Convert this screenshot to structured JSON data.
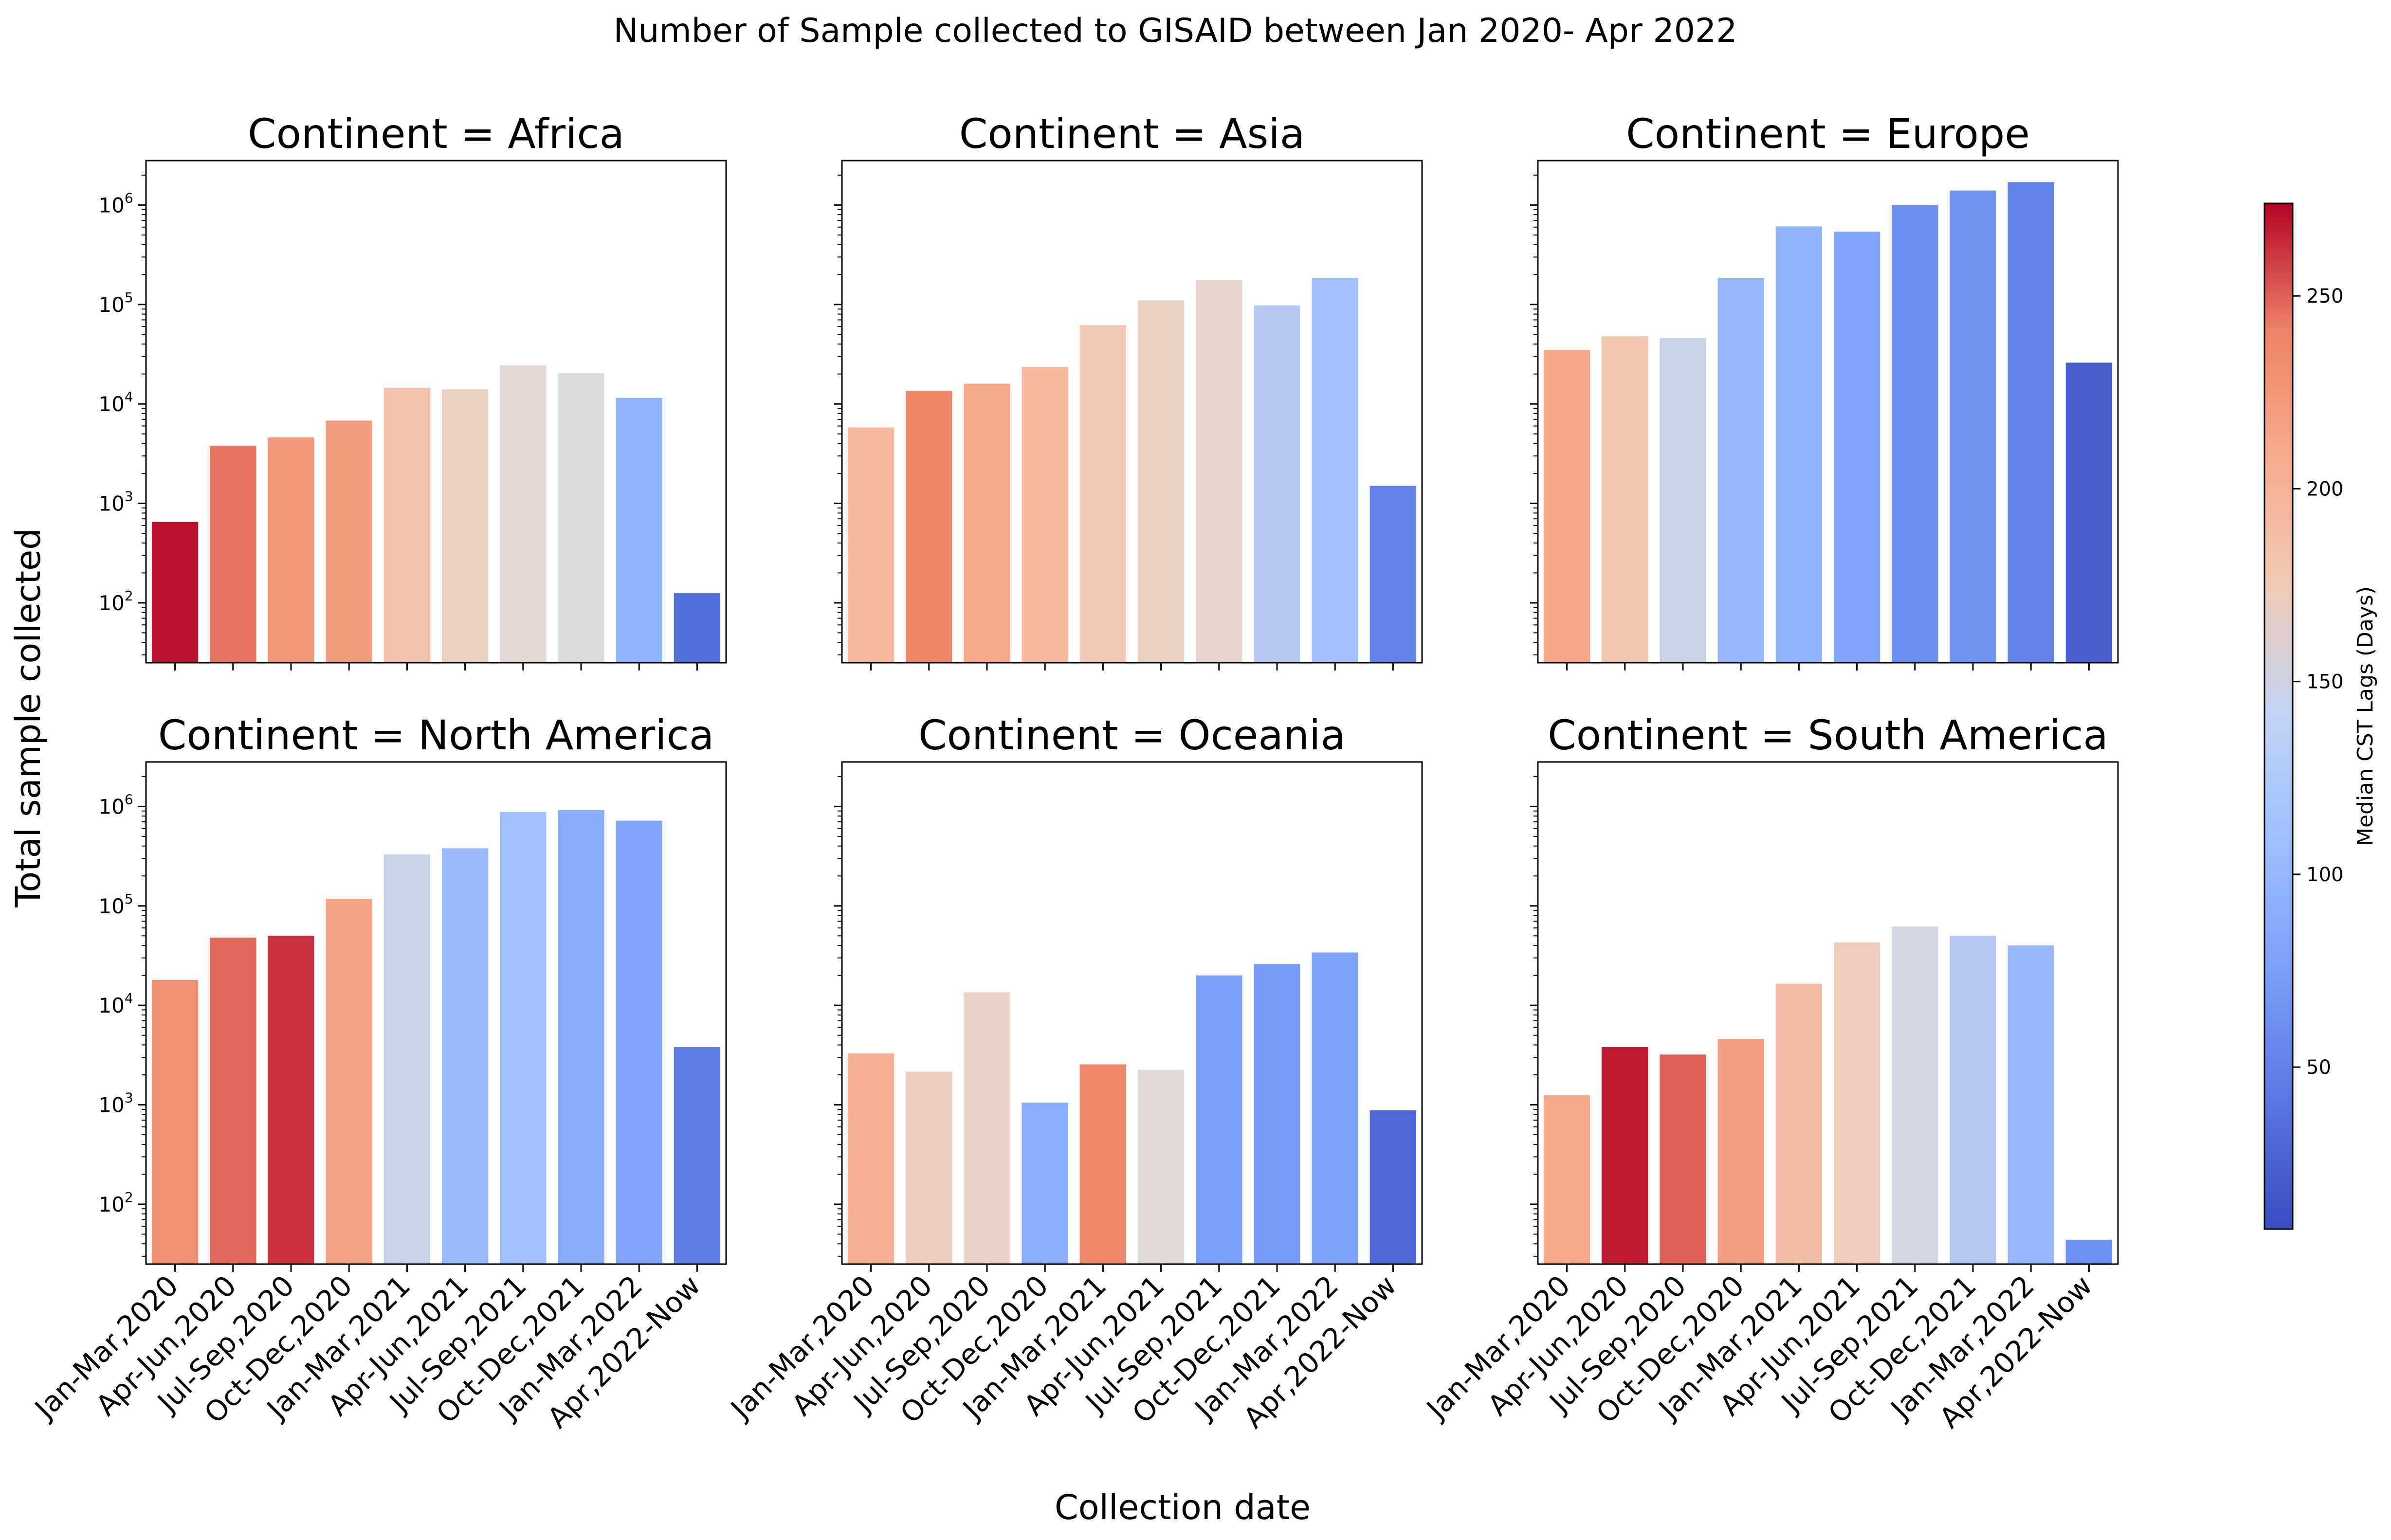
{
  "chart_data": {
    "type": "bar",
    "title": "Number of Sample collected to GISAID between Jan 2020- Apr 2022",
    "xlabel": "Collection date",
    "ylabel": "Total sample collected",
    "yscale": "log",
    "ylim": [
      25,
      2800000
    ],
    "ytick_labels": [
      {
        "base": "10",
        "exp": "2",
        "value": 100
      },
      {
        "base": "10",
        "exp": "3",
        "value": 1000
      },
      {
        "base": "10",
        "exp": "4",
        "value": 10000
      },
      {
        "base": "10",
        "exp": "5",
        "value": 100000
      },
      {
        "base": "10",
        "exp": "6",
        "value": 1000000
      }
    ],
    "categories": [
      "Jan-Mar,2020",
      "Apr-Jun,2020",
      "Jul-Sep,2020",
      "Oct-Dec,2020",
      "Jan-Mar,2021",
      "Apr-Jun,2021",
      "Jul-Sep,2021",
      "Oct-Dec,2021",
      "Jan-Mar,2022",
      "Apr,2022-Now"
    ],
    "color_scale": {
      "label": "Median CST Lags (Days)",
      "colormap": "coolwarm",
      "range": [
        8,
        274
      ],
      "ticks": [
        50,
        100,
        150,
        200,
        250
      ]
    },
    "panels": [
      {
        "title": "Continent = Africa",
        "values": [
          650,
          3800,
          4600,
          6800,
          14500,
          14000,
          24500,
          20500,
          11500,
          125
        ],
        "color_values": [
          270,
          245,
          225,
          222,
          185,
          165,
          150,
          142,
          95,
          35
        ]
      },
      {
        "title": "Continent = Asia",
        "values": [
          5800,
          13500,
          16000,
          23500,
          62000,
          110000,
          175000,
          98000,
          185000,
          1500
        ],
        "color_values": [
          195,
          240,
          210,
          195,
          175,
          163,
          155,
          120,
          110,
          50
        ]
      },
      {
        "title": "Continent = Europe",
        "values": [
          35000,
          48000,
          46000,
          185000,
          610000,
          540000,
          1000000,
          1400000,
          1700000,
          26000
        ],
        "color_values": [
          212,
          180,
          130,
          100,
          95,
          80,
          60,
          65,
          50,
          22
        ]
      },
      {
        "title": "Continent = North America",
        "values": [
          18000,
          48000,
          50000,
          118000,
          330000,
          380000,
          880000,
          920000,
          720000,
          3800
        ],
        "color_values": [
          230,
          248,
          262,
          215,
          130,
          105,
          110,
          88,
          80,
          45
        ]
      },
      {
        "title": "Continent = Oceania",
        "values": [
          3300,
          2150,
          13500,
          1050,
          2550,
          2250,
          20000,
          26000,
          34000,
          880
        ],
        "color_values": [
          203,
          168,
          160,
          90,
          238,
          148,
          75,
          70,
          78,
          30
        ]
      },
      {
        "title": "Continent = South America",
        "values": [
          1250,
          3800,
          3200,
          4600,
          16500,
          43000,
          62000,
          50000,
          40000,
          44
        ],
        "color_values": [
          210,
          268,
          250,
          220,
          188,
          170,
          135,
          120,
          100,
          62
        ]
      }
    ]
  }
}
